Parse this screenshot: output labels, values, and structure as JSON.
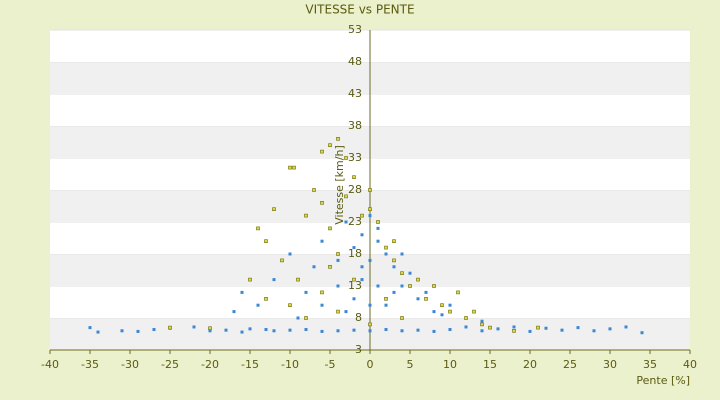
{
  "chart_data": {
    "type": "scatter",
    "title": "VITESSE vs PENTE",
    "x_label": "Pente [%]",
    "y_label": "Vitesse [km/h]",
    "xlim": [
      -40,
      40
    ],
    "xticks": [
      -40,
      -35,
      -30,
      -25,
      -20,
      -15,
      -10,
      -5,
      0,
      5,
      10,
      15,
      20,
      25,
      30,
      35,
      40
    ],
    "ylim": [
      3,
      53
    ],
    "yticks": [
      3,
      8,
      13,
      18,
      23,
      28,
      33,
      38,
      43,
      48,
      53
    ],
    "grid": "bands",
    "series": [
      {
        "color": "#3a87d4",
        "x": [
          -35,
          -34,
          -31,
          -29,
          -27,
          -25,
          -22,
          -20,
          -18,
          -16,
          -15,
          -13,
          -12,
          -10,
          -8,
          -6,
          -4,
          -2,
          0,
          2,
          4,
          6,
          8,
          10,
          12,
          14,
          16,
          18,
          20,
          22,
          24,
          26,
          28,
          30,
          32,
          34,
          -14,
          -12,
          -10,
          -8,
          -7,
          -6,
          -5,
          -4,
          -3,
          -2,
          -1,
          0,
          1,
          2,
          3,
          4,
          5,
          6,
          7,
          8,
          10,
          12,
          14,
          -1,
          0,
          1,
          -2,
          2,
          -3,
          3,
          0,
          -1,
          1,
          -4,
          4,
          -6,
          6,
          -9,
          9,
          -16,
          -17
        ],
        "y": [
          6.5,
          5.8,
          6,
          5.9,
          6.2,
          6.4,
          6.6,
          6,
          6.1,
          5.8,
          6.3,
          6.2,
          6,
          6.1,
          6.2,
          5.9,
          6,
          6.1,
          6,
          6.2,
          6,
          6.1,
          5.9,
          6.2,
          6.6,
          6,
          6.3,
          6.6,
          5.9,
          6.4,
          6.1,
          6.5,
          6,
          6.3,
          6.6,
          5.7,
          10,
          14,
          18,
          12,
          16,
          20,
          22,
          17,
          23,
          19,
          21,
          24,
          20,
          18,
          16,
          13,
          15,
          11,
          12,
          9,
          10,
          8,
          7.5,
          14,
          17,
          13,
          11,
          10,
          9,
          12,
          10,
          16,
          22,
          13,
          18,
          10,
          14,
          8,
          8.5,
          12,
          9
        ]
      },
      {
        "color": "#d8d84a",
        "x": [
          -10,
          -9.5,
          -6,
          -5,
          -4,
          -3,
          -12,
          -14,
          -13,
          -11,
          -8,
          -7,
          -6,
          -5,
          -4,
          -3,
          -2,
          -1,
          0,
          1,
          2,
          3,
          4,
          5,
          6,
          7,
          8,
          9,
          10,
          11,
          12,
          13,
          14,
          -10,
          -8,
          -6,
          -4,
          -2,
          0,
          2,
          4,
          -15,
          -13,
          15,
          18,
          21,
          -25,
          -20,
          -9,
          -5,
          3,
          0
        ],
        "y": [
          31.5,
          31.5,
          34,
          35,
          36,
          33,
          25,
          22,
          20,
          17,
          24,
          28,
          26,
          22,
          18,
          27,
          30,
          24,
          25,
          23,
          19,
          17,
          15,
          13,
          14,
          11,
          13,
          10,
          9,
          12,
          8,
          9,
          7,
          10,
          8,
          12,
          9,
          14,
          7,
          11,
          8,
          14,
          11,
          6.5,
          6,
          6.5,
          6.5,
          6.4,
          14,
          16,
          20,
          28
        ]
      }
    ]
  }
}
